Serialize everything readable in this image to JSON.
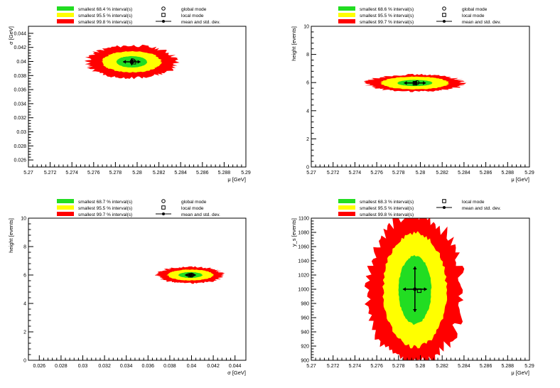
{
  "colors": {
    "band_68": "#22dd22",
    "band_95": "#ffff00",
    "band_99": "#ff0000",
    "marker": "#000000",
    "frame": "#000000"
  },
  "chart_data": [
    {
      "type": "heatmap",
      "xlabel": "μ [GeV]",
      "ylabel": "σ [GeV]",
      "xlim": [
        5.27,
        5.29
      ],
      "ylim": [
        0.025,
        0.045
      ],
      "xticks": [
        "5.27",
        "5.272",
        "5.274",
        "5.276",
        "5.278",
        "5.28",
        "5.282",
        "5.284",
        "5.286",
        "5.288",
        "5.29"
      ],
      "yticks": [
        "0.026",
        "0.028",
        "0.03",
        "0.032",
        "0.034",
        "0.036",
        "0.038",
        "0.04",
        "0.042",
        "0.044"
      ],
      "legend": [
        "smallest 68.4 % interval(s)",
        "smallest 95.5 % interval(s)",
        "smallest 99.8 % interval(s)"
      ],
      "legend_markers": [
        "global mode",
        "local mode",
        "mean and std. dev."
      ],
      "regions": {
        "center": [
          5.2795,
          0.03995
        ],
        "half68": [
          0.0014,
          0.0008
        ],
        "half95": [
          0.0027,
          0.0015
        ],
        "half99": [
          0.0041,
          0.0023
        ]
      },
      "mean": [
        5.2795,
        0.03995
      ],
      "std": [
        0.0008,
        0.0005
      ],
      "global_mode": [
        5.2796,
        0.0401
      ],
      "local_mode": [
        5.2797,
        0.0399
      ]
    },
    {
      "type": "heatmap",
      "xlabel": "μ [GeV]",
      "ylabel": "height [events]",
      "xlim": [
        5.27,
        5.29
      ],
      "ylim": [
        0,
        10
      ],
      "xticks": [
        "5.27",
        "5.272",
        "5.274",
        "5.276",
        "5.278",
        "5.28",
        "5.282",
        "5.284",
        "5.286",
        "5.288",
        "5.29"
      ],
      "yticks": [
        "0",
        "2",
        "4",
        "6",
        "8",
        "10"
      ],
      "legend": [
        "smallest 68.6 % interval(s)",
        "smallest 95.5 % interval(s)",
        "smallest 99.7 % interval(s)"
      ],
      "legend_markers": [
        "global mode",
        "local mode",
        "mean and std. dev."
      ],
      "regions": {
        "center": [
          5.2795,
          5.97
        ],
        "half68": [
          0.0016,
          0.22
        ],
        "half95": [
          0.0031,
          0.45
        ],
        "half99": [
          0.0044,
          0.6
        ]
      },
      "mean": [
        5.2795,
        5.97
      ],
      "std": [
        0.001,
        0.12
      ],
      "global_mode": [
        5.2797,
        6.0
      ],
      "local_mode": [
        5.2795,
        5.95
      ]
    },
    {
      "type": "heatmap",
      "xlabel": "σ [GeV]",
      "ylabel": "height [events]",
      "xlim": [
        0.025,
        0.045
      ],
      "ylim": [
        0,
        10
      ],
      "xticks": [
        "0.026",
        "0.028",
        "0.03",
        "0.032",
        "0.034",
        "0.036",
        "0.038",
        "0.04",
        "0.042",
        "0.044"
      ],
      "yticks": [
        "0",
        "2",
        "4",
        "6",
        "8",
        "10"
      ],
      "legend": [
        "smallest 68.7 % interval(s)",
        "smallest 95.5 % interval(s)",
        "smallest 99.7 % interval(s)"
      ],
      "legend_markers": [
        "global mode",
        "local mode",
        "mean and std. dev."
      ],
      "regions": {
        "center": [
          0.0399,
          6.0
        ],
        "half68": [
          0.0011,
          0.2
        ],
        "half95": [
          0.0021,
          0.38
        ],
        "half99": [
          0.003,
          0.58
        ]
      },
      "mean": [
        0.0399,
        6.0
      ],
      "std": [
        0.0005,
        0.1
      ],
      "global_mode": [
        0.04,
        6.0
      ],
      "local_mode": [
        0.0399,
        5.98
      ]
    },
    {
      "type": "heatmap",
      "xlabel": "μ [GeV]",
      "ylabel": "y_s [events]",
      "xlim": [
        5.27,
        5.29
      ],
      "ylim": [
        900,
        1100
      ],
      "xticks": [
        "5.27",
        "5.272",
        "5.274",
        "5.276",
        "5.278",
        "5.28",
        "5.282",
        "5.284",
        "5.286",
        "5.288",
        "5.29"
      ],
      "yticks": [
        "900",
        "920",
        "940",
        "960",
        "980",
        "1000",
        "1020",
        "1040",
        "1060",
        "1080",
        "1100"
      ],
      "legend": [
        "smallest 68.3 % interval(s)",
        "smallest 95.5 % interval(s)",
        "smallest 99.8 % interval(s)"
      ],
      "legend_markers": [
        "local mode",
        "mean and std. dev."
      ],
      "regions": {
        "center": [
          5.2795,
          999
        ],
        "half68": [
          0.0015,
          48
        ],
        "half95": [
          0.0029,
          80
        ],
        "half99": [
          0.0044,
          105
        ]
      },
      "mean": [
        5.2795,
        1000
      ],
      "std": [
        0.0011,
        32
      ],
      "local_mode": [
        5.2799,
        998
      ]
    }
  ]
}
